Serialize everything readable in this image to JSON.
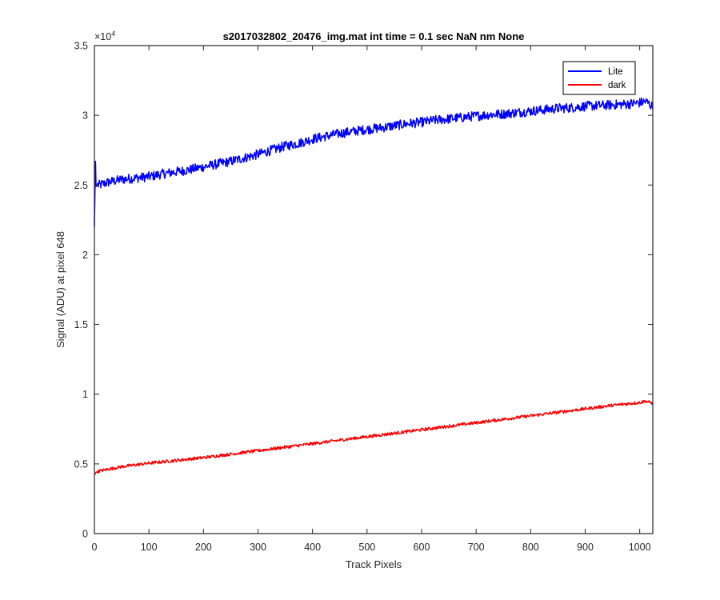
{
  "chart_data": {
    "type": "line",
    "title": "s2017032802_20476_img.mat int time = 0.1 sec  NaN nm None",
    "xlabel": "Track Pixels",
    "ylabel": "Signal (ADU) at pixel 648",
    "xlim": [
      0,
      1024
    ],
    "ylim": [
      0,
      35000
    ],
    "xticks": [
      0,
      100,
      200,
      300,
      400,
      500,
      600,
      700,
      800,
      900,
      1000
    ],
    "yticks": [
      0,
      5000,
      10000,
      15000,
      20000,
      25000,
      30000,
      35000
    ],
    "ytick_labels": [
      "0",
      "0.5",
      "1",
      "1.5",
      "2",
      "2.5",
      "3",
      "3.5"
    ],
    "y_exponent_label": "×10",
    "y_exponent_power": "4",
    "grid": false,
    "legend_position": "top-right",
    "series": [
      {
        "name": "Lite",
        "color": "#0000ff",
        "x": [
          0,
          2,
          3,
          5,
          10,
          25,
          50,
          75,
          100,
          125,
          150,
          175,
          200,
          225,
          250,
          275,
          300,
          325,
          350,
          375,
          400,
          425,
          450,
          475,
          500,
          525,
          550,
          575,
          600,
          625,
          650,
          675,
          700,
          725,
          750,
          775,
          800,
          825,
          850,
          875,
          900,
          925,
          950,
          975,
          1000,
          1010,
          1015,
          1024
        ],
        "values": [
          22000,
          26700,
          24900,
          25000,
          25000,
          25200,
          25400,
          25500,
          25600,
          25800,
          25950,
          26100,
          26300,
          26500,
          26700,
          26950,
          27200,
          27500,
          27800,
          28000,
          28300,
          28500,
          28700,
          28850,
          29000,
          29100,
          29250,
          29400,
          29500,
          29650,
          29750,
          29850,
          29950,
          30050,
          30100,
          30200,
          30300,
          30400,
          30500,
          30550,
          30650,
          30700,
          30750,
          30800,
          30900,
          31000,
          30900,
          30600
        ],
        "noise_amplitude": 350
      },
      {
        "name": "dark",
        "color": "#ff0000",
        "x": [
          0,
          1,
          3,
          10,
          50,
          100,
          150,
          200,
          250,
          300,
          350,
          400,
          450,
          500,
          550,
          600,
          650,
          700,
          750,
          800,
          850,
          900,
          950,
          1000,
          1010,
          1024
        ],
        "values": [
          4200,
          4250,
          4400,
          4500,
          4800,
          5050,
          5250,
          5450,
          5700,
          5950,
          6200,
          6450,
          6700,
          6950,
          7200,
          7450,
          7700,
          7950,
          8200,
          8450,
          8700,
          8950,
          9200,
          9400,
          9500,
          9350
        ],
        "noise_amplitude": 110
      }
    ]
  }
}
